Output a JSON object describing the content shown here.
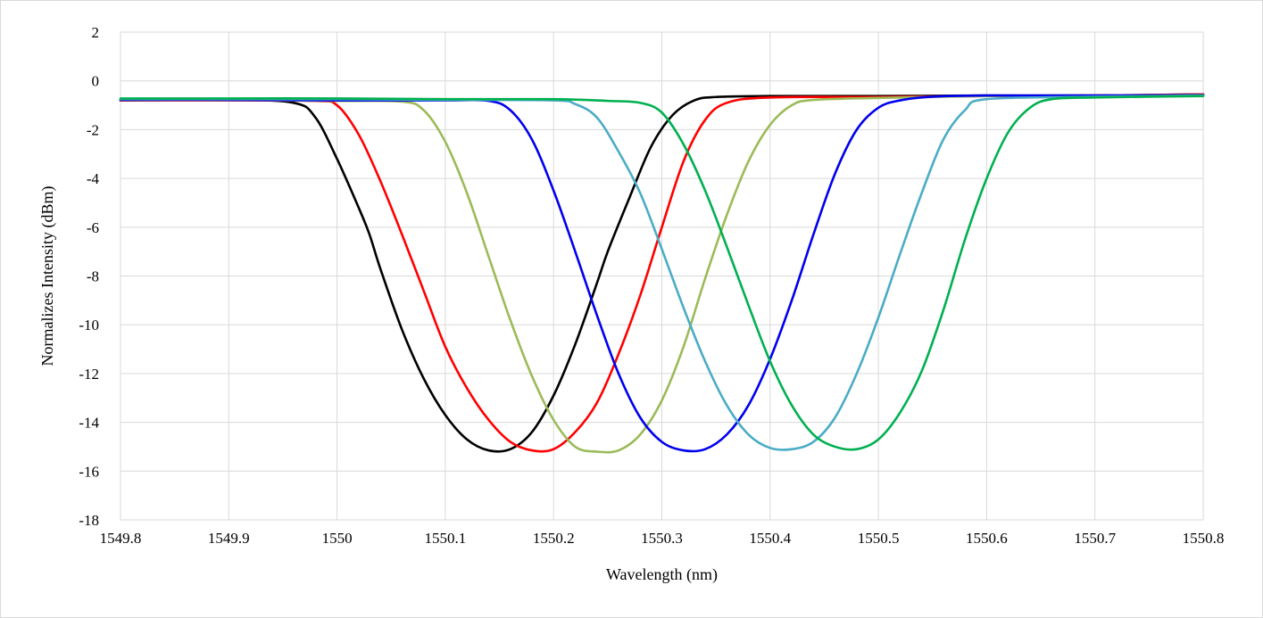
{
  "chart_data": {
    "type": "line",
    "title": "",
    "xlabel": "Wavelength (nm)",
    "ylabel": "Normalizes Intensity (dBm)",
    "xlim": [
      1549.8,
      1550.8
    ],
    "ylim": [
      -18,
      2
    ],
    "x_ticks": [
      1549.8,
      1549.9,
      1550,
      1550.1,
      1550.2,
      1550.3,
      1550.4,
      1550.5,
      1550.6,
      1550.7,
      1550.8
    ],
    "x_tick_labels": [
      "1549.8",
      "1549.9",
      "1550",
      "1550.1",
      "1550.2",
      "1550.3",
      "1550.4",
      "1550.5",
      "1550.6",
      "1550.7",
      "1550.8"
    ],
    "y_ticks": [
      2,
      0,
      -2,
      -4,
      -6,
      -8,
      -10,
      -12,
      -14,
      -16,
      -18
    ],
    "y_tick_labels": [
      "2",
      "0",
      "-2",
      "-4",
      "-6",
      "-8",
      "-10",
      "-12",
      "-14",
      "-16",
      "-18"
    ],
    "grid": true,
    "legend": "none",
    "series": [
      {
        "color": "#000000",
        "x": [
          1549.8,
          1549.9,
          1549.96,
          1549.98,
          1550.0,
          1550.02,
          1550.03,
          1550.04,
          1550.06,
          1550.08,
          1550.1,
          1550.12,
          1550.14,
          1550.16,
          1550.18,
          1550.2,
          1550.22,
          1550.24,
          1550.25,
          1550.27,
          1550.29,
          1550.31,
          1550.33,
          1550.35,
          1550.4,
          1550.5,
          1550.6,
          1550.7,
          1550.8
        ],
        "y": [
          -0.8,
          -0.78,
          -0.9,
          -1.5,
          -3.2,
          -5.2,
          -6.3,
          -7.7,
          -10.2,
          -12.2,
          -13.7,
          -14.7,
          -15.15,
          -15.1,
          -14.4,
          -12.9,
          -10.8,
          -8.3,
          -7.0,
          -4.8,
          -2.7,
          -1.4,
          -0.8,
          -0.66,
          -0.62,
          -0.62,
          -0.6,
          -0.6,
          -0.55
        ]
      },
      {
        "color": "#ff0000",
        "x": [
          1549.8,
          1549.9,
          1549.98,
          1550.0,
          1550.02,
          1550.04,
          1550.06,
          1550.08,
          1550.1,
          1550.12,
          1550.14,
          1550.16,
          1550.18,
          1550.2,
          1550.22,
          1550.24,
          1550.26,
          1550.28,
          1550.3,
          1550.32,
          1550.34,
          1550.36,
          1550.4,
          1550.5,
          1550.6,
          1550.7,
          1550.8
        ],
        "y": [
          -0.8,
          -0.8,
          -0.82,
          -1.0,
          -2.2,
          -4.1,
          -6.3,
          -8.6,
          -10.9,
          -12.6,
          -13.9,
          -14.8,
          -15.15,
          -15.1,
          -14.4,
          -13.2,
          -11.2,
          -8.8,
          -6.0,
          -3.3,
          -1.6,
          -0.9,
          -0.68,
          -0.66,
          -0.62,
          -0.6,
          -0.55
        ]
      },
      {
        "color": "#9bbb59",
        "x": [
          1549.8,
          1549.9,
          1550.0,
          1550.06,
          1550.08,
          1550.1,
          1550.12,
          1550.14,
          1550.16,
          1550.18,
          1550.2,
          1550.22,
          1550.24,
          1550.26,
          1550.28,
          1550.3,
          1550.32,
          1550.34,
          1550.36,
          1550.38,
          1550.4,
          1550.42,
          1550.44,
          1550.5,
          1550.6,
          1550.7,
          1550.8
        ],
        "y": [
          -0.78,
          -0.78,
          -0.82,
          -0.85,
          -1.2,
          -2.5,
          -4.6,
          -7.2,
          -9.8,
          -12.1,
          -13.9,
          -15.0,
          -15.2,
          -15.15,
          -14.5,
          -13.1,
          -10.9,
          -8.1,
          -5.5,
          -3.3,
          -1.8,
          -1.0,
          -0.78,
          -0.7,
          -0.62,
          -0.6,
          -0.58
        ]
      },
      {
        "color": "#0000ee",
        "x": [
          1549.8,
          1549.9,
          1550.0,
          1550.1,
          1550.14,
          1550.16,
          1550.18,
          1550.2,
          1550.22,
          1550.24,
          1550.26,
          1550.28,
          1550.3,
          1550.32,
          1550.34,
          1550.36,
          1550.38,
          1550.4,
          1550.42,
          1550.44,
          1550.46,
          1550.48,
          1550.5,
          1550.52,
          1550.55,
          1550.6,
          1550.7,
          1550.8
        ],
        "y": [
          -0.78,
          -0.78,
          -0.8,
          -0.8,
          -0.82,
          -1.2,
          -2.4,
          -4.5,
          -7.0,
          -9.6,
          -12.0,
          -13.8,
          -14.8,
          -15.15,
          -15.1,
          -14.5,
          -13.3,
          -11.4,
          -9.0,
          -6.3,
          -3.8,
          -2.0,
          -1.1,
          -0.8,
          -0.65,
          -0.6,
          -0.6,
          -0.58
        ]
      },
      {
        "color": "#4bacc6",
        "x": [
          1549.8,
          1549.9,
          1550.0,
          1550.1,
          1550.2,
          1550.22,
          1550.24,
          1550.26,
          1550.28,
          1550.3,
          1550.32,
          1550.34,
          1550.36,
          1550.38,
          1550.4,
          1550.42,
          1550.44,
          1550.46,
          1550.48,
          1550.5,
          1550.52,
          1550.54,
          1550.56,
          1550.58,
          1550.6,
          1550.7,
          1550.8
        ],
        "y": [
          -0.75,
          -0.75,
          -0.75,
          -0.78,
          -0.8,
          -0.95,
          -1.5,
          -2.9,
          -4.6,
          -6.9,
          -9.3,
          -11.5,
          -13.3,
          -14.5,
          -15.05,
          -15.1,
          -14.8,
          -13.8,
          -12.0,
          -9.7,
          -7.1,
          -4.6,
          -2.4,
          -1.2,
          -0.75,
          -0.65,
          -0.6
        ]
      },
      {
        "color": "#00b050",
        "x": [
          1549.8,
          1549.9,
          1550.0,
          1550.1,
          1550.2,
          1550.25,
          1550.28,
          1550.3,
          1550.32,
          1550.34,
          1550.36,
          1550.38,
          1550.4,
          1550.42,
          1550.44,
          1550.46,
          1550.48,
          1550.5,
          1550.52,
          1550.54,
          1550.56,
          1550.58,
          1550.6,
          1550.62,
          1550.64,
          1550.66,
          1550.7,
          1550.8
        ],
        "y": [
          -0.72,
          -0.72,
          -0.72,
          -0.75,
          -0.75,
          -0.82,
          -0.9,
          -1.3,
          -2.6,
          -4.5,
          -6.8,
          -9.2,
          -11.5,
          -13.3,
          -14.5,
          -15.0,
          -15.1,
          -14.7,
          -13.6,
          -11.9,
          -9.4,
          -6.5,
          -4.0,
          -2.1,
          -1.1,
          -0.75,
          -0.68,
          -0.62
        ]
      }
    ]
  }
}
